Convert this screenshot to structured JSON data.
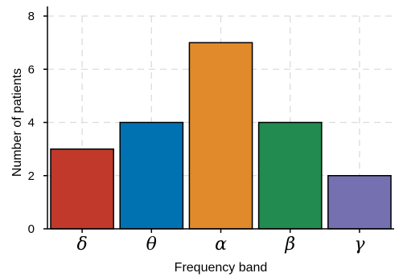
{
  "chart_data": {
    "type": "bar",
    "categories": [
      "δ",
      "θ",
      "α",
      "β",
      "γ"
    ],
    "values": [
      3,
      4,
      7,
      4,
      2
    ],
    "colors": [
      "#c0392b",
      "#0072b2",
      "#e08a2b",
      "#228b50",
      "#7570b0"
    ],
    "xlabel": "Frequency band",
    "ylabel": "Number of patients",
    "ylim": [
      0,
      8
    ],
    "yticks": [
      0,
      2,
      4,
      6,
      8
    ],
    "grid": true
  }
}
